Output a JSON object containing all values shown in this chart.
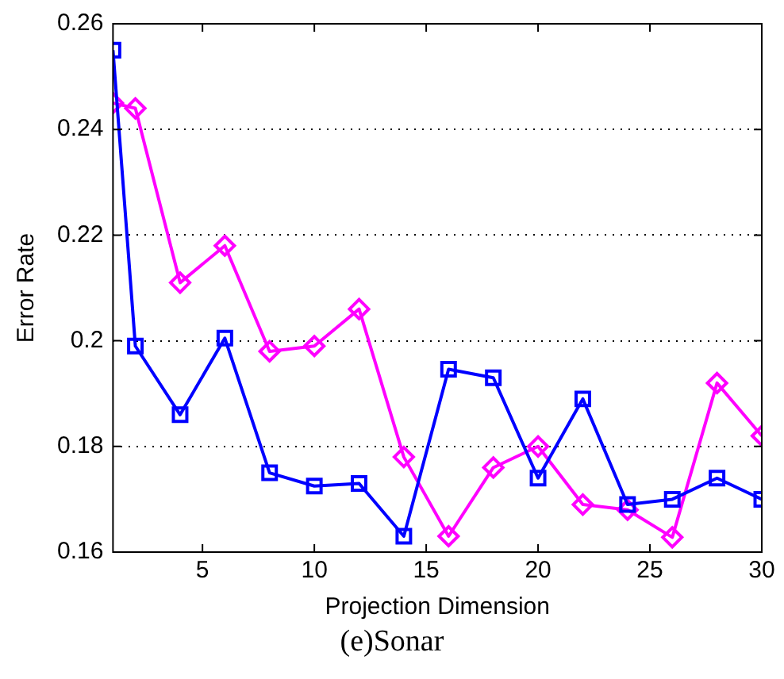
{
  "chart_data": {
    "type": "line",
    "xlabel": "Projection Dimension",
    "ylabel": "Error Rate",
    "annotations": [
      "(e)Sonar"
    ],
    "x": [
      1,
      2,
      4,
      6,
      8,
      10,
      12,
      14,
      16,
      18,
      20,
      22,
      24,
      26,
      28,
      30
    ],
    "xlim": [
      1,
      30
    ],
    "xticks": [
      5,
      10,
      15,
      20,
      25,
      30
    ],
    "ylim": [
      0.16,
      0.26
    ],
    "yticks": [
      0.16,
      0.18,
      0.2,
      0.22,
      0.24,
      0.26
    ],
    "grid": "y",
    "line_style": "solid",
    "series": [
      {
        "color": "#0000ff",
        "marker": "square",
        "values": [
          0.255,
          0.199,
          0.186,
          0.2005,
          0.175,
          0.1725,
          0.173,
          0.163,
          0.1946,
          0.193,
          0.174,
          0.189,
          0.169,
          0.17,
          0.174,
          0.17
        ]
      },
      {
        "color": "#ff00ff",
        "marker": "diamond",
        "values": [
          0.245,
          0.244,
          0.211,
          0.218,
          0.198,
          0.199,
          0.206,
          0.178,
          0.163,
          0.176,
          0.18,
          0.169,
          0.168,
          0.1628,
          0.192,
          0.182
        ]
      }
    ]
  }
}
